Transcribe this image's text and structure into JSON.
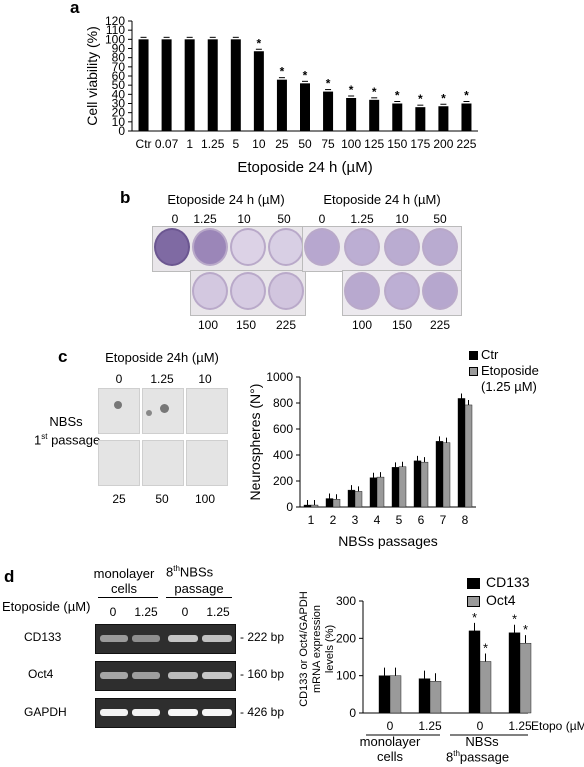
{
  "panels": {
    "a": "a",
    "b": "b",
    "c": "c",
    "d": "d"
  },
  "colors": {
    "black_bar": "#000000",
    "gray_bar": "#9a9a9a",
    "gel_bg": "#2e2e2e",
    "plate": "#e9e6ea",
    "well_stain": "#9b86b8"
  },
  "chart_data": [
    {
      "type": "bar",
      "panel": "a",
      "categories": [
        "Ctr",
        "0.07",
        "1",
        "1.25",
        "5",
        "10",
        "25",
        "50",
        "75",
        "100",
        "125",
        "150",
        "175",
        "200",
        "225"
      ],
      "values": [
        100,
        100,
        100,
        100,
        100,
        87,
        56,
        52,
        43,
        36,
        34,
        30,
        26,
        27,
        30
      ],
      "significant": [
        false,
        false,
        false,
        false,
        false,
        true,
        true,
        true,
        true,
        true,
        true,
        true,
        true,
        true,
        true
      ],
      "ylabel": "Cell viability (%)",
      "xlabel": "Etoposide 24 h (µM)",
      "ylim": [
        0,
        120
      ],
      "yticks": [
        0,
        10,
        20,
        30,
        40,
        50,
        60,
        70,
        80,
        90,
        100,
        110,
        120
      ],
      "grid": false
    },
    {
      "type": "bar",
      "panel": "c",
      "categories": [
        "1",
        "2",
        "3",
        "4",
        "5",
        "6",
        "7",
        "8"
      ],
      "series": [
        {
          "name": "Ctr",
          "values": [
            15,
            65,
            130,
            225,
            305,
            355,
            505,
            835
          ]
        },
        {
          "name": "Etoposide (1.25 µM)",
          "values": [
            15,
            60,
            120,
            230,
            310,
            345,
            495,
            785
          ]
        }
      ],
      "ylabel": "Neurospheres (N°)",
      "xlabel": "NBSs passages",
      "ylim": [
        0,
        1000
      ],
      "yticks": [
        0,
        200,
        400,
        600,
        800,
        1000
      ],
      "legend": "top-right",
      "grid": false
    },
    {
      "type": "bar",
      "panel": "d",
      "categories": [
        "0",
        "1.25",
        "0",
        "1.25"
      ],
      "series": [
        {
          "name": "CD133",
          "values": [
            100,
            92,
            220,
            215
          ]
        },
        {
          "name": "Oct4",
          "values": [
            100,
            85,
            138,
            187
          ]
        }
      ],
      "significant": [
        [
          false,
          false,
          true,
          true
        ],
        [
          false,
          false,
          true,
          true
        ]
      ],
      "ylabel": "CD133 or Oct4/GAPDH mRNA expression levels (%)",
      "xlabel": "Etopo (µM)",
      "groups": [
        "monolayer cells",
        "NBSs 8th passage"
      ],
      "ylim": [
        0,
        300
      ],
      "yticks": [
        0,
        100,
        200,
        300
      ],
      "legend": "top-right",
      "grid": false
    }
  ],
  "panel_a": {
    "star": "*"
  },
  "panel_b": {
    "title_left": "Etoposide 24 h (µM)",
    "title_right": "Etoposide 24 h (µM)",
    "left_top_doses": [
      "0",
      "1.25",
      "10",
      "50"
    ],
    "left_bottom_doses": [
      "100",
      "150",
      "225"
    ],
    "right_top_doses": [
      "0",
      "1.25",
      "10",
      "50"
    ],
    "right_bottom_doses": [
      "100",
      "150",
      "225"
    ]
  },
  "panel_c": {
    "title": "Etoposide 24h (µM)",
    "row_label_1": "NBSs",
    "row_label_2": "1",
    "row_label_sup": "st",
    "row_label_3": " passage",
    "top_doses": [
      "0",
      "1.25",
      "10"
    ],
    "bottom_doses": [
      "25",
      "50",
      "100"
    ],
    "legend_ctr": "Ctr",
    "legend_eto_1": "Etoposide",
    "legend_eto_2": "(1.25 µM)"
  },
  "panel_d": {
    "col_group_1_line1": "monolayer",
    "col_group_1_line2": "cells",
    "col_group_2_pre": "8",
    "col_group_2_sup": "th",
    "col_group_2_line1": "NBSs",
    "col_group_2_line2": "passage",
    "etoposide_label": "Etoposide (µM)",
    "lane_doses": [
      "0",
      "1.25",
      "0",
      "1.25"
    ],
    "genes": [
      "CD133",
      "Oct4",
      "GAPDH"
    ],
    "sizes": [
      "- 222 bp",
      "- 160 bp",
      "- 426 bp"
    ],
    "legend_cd133": "CD133",
    "legend_oct4": "Oct4",
    "group_1_line1": "monolayer",
    "group_1_line2": "cells",
    "group_2_line1": "NBSs",
    "group_2_pre": "8",
    "group_2_sup": "th",
    "group_2_line2": "passage",
    "star": "*"
  }
}
